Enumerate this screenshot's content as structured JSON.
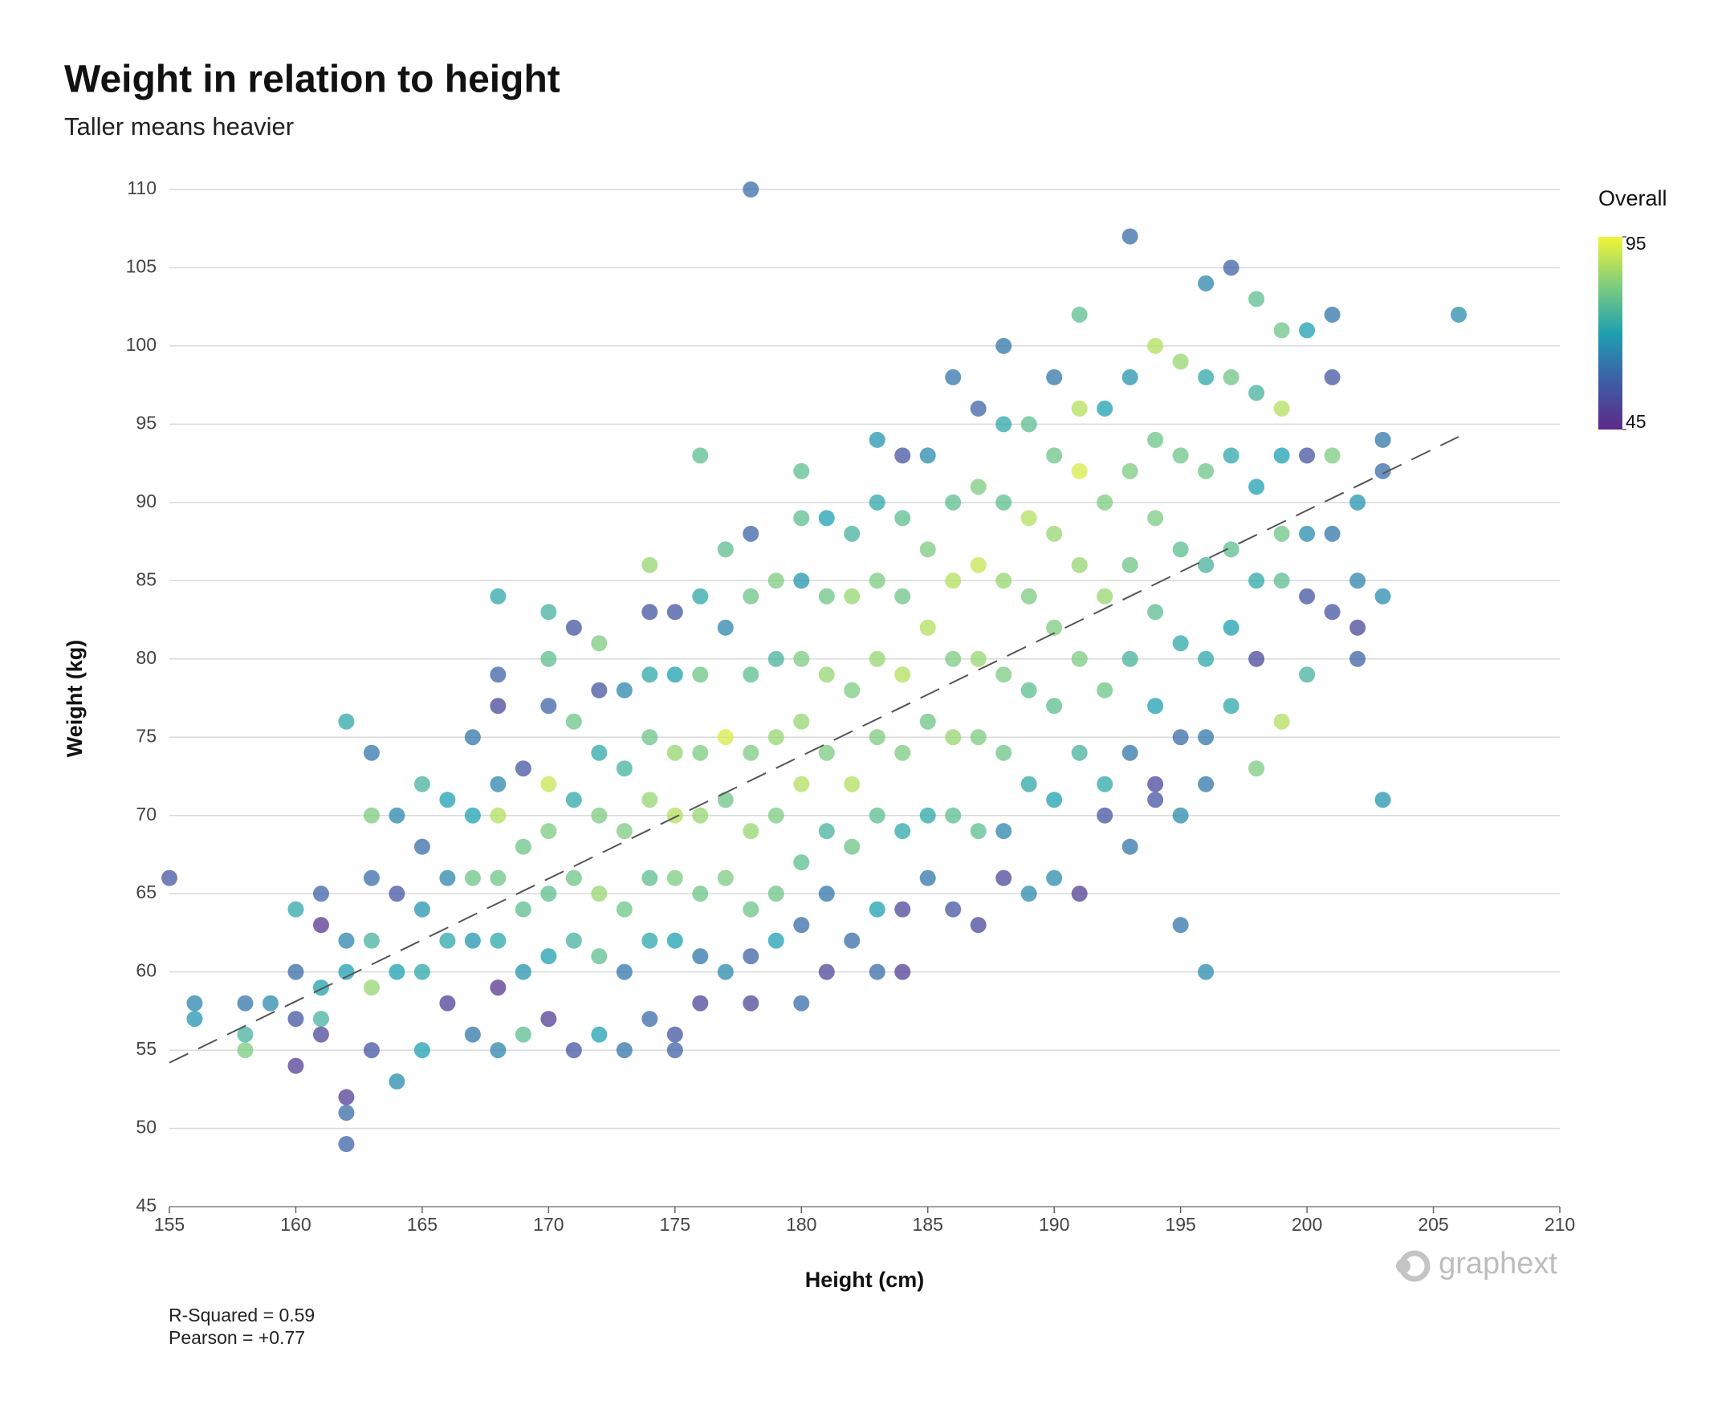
{
  "chart_data": {
    "type": "scatter",
    "title": "Weight in relation to height",
    "subtitle": "Taller means heavier",
    "x_label": "Height (cm)",
    "y_label": "Weight (kg)",
    "annotations": [
      "R-Squared = 0.59",
      "Pearson = +0.77"
    ],
    "logo": "graphext",
    "xlim": [
      155,
      210
    ],
    "xticks": [
      155,
      160,
      165,
      170,
      175,
      180,
      185,
      190,
      195,
      200,
      205,
      210
    ],
    "ylim": [
      45,
      110
    ],
    "yticks": [
      45,
      50,
      55,
      60,
      65,
      70,
      75,
      80,
      85,
      90,
      95,
      100,
      105,
      110
    ],
    "grid": true,
    "colorbar": {
      "title": "Overall",
      "lim": [
        45,
        95
      ],
      "ticks": [
        95,
        45
      ],
      "colorscale": [
        "#5c2a88",
        "#3e5ea6",
        "#1ea0b0",
        "#7fcd7d",
        "#f2f536"
      ]
    },
    "trendline": {
      "x": [
        155,
        206
      ],
      "y": [
        54.2,
        94.2
      ]
    },
    "x": [
      155,
      156,
      156,
      158,
      158,
      158,
      159,
      160,
      160,
      160,
      160,
      161,
      161,
      161,
      161,
      161,
      162,
      162,
      162,
      162,
      162,
      162,
      163,
      163,
      163,
      163,
      163,
      163,
      164,
      164,
      164,
      164,
      165,
      165,
      165,
      165,
      165,
      166,
      166,
      166,
      166,
      167,
      167,
      167,
      167,
      167,
      168,
      168,
      168,
      168,
      168,
      168,
      168,
      168,
      168,
      169,
      169,
      169,
      169,
      169,
      170,
      170,
      170,
      170,
      170,
      170,
      170,
      170,
      171,
      171,
      171,
      171,
      171,
      171,
      172,
      172,
      172,
      172,
      172,
      172,
      172,
      173,
      173,
      173,
      173,
      173,
      173,
      174,
      174,
      174,
      174,
      174,
      174,
      174,
      174,
      175,
      175,
      175,
      175,
      175,
      175,
      175,
      175,
      176,
      176,
      176,
      176,
      176,
      176,
      176,
      176,
      177,
      177,
      177,
      177,
      177,
      177,
      178,
      178,
      178,
      178,
      178,
      178,
      178,
      178,
      178,
      179,
      179,
      179,
      179,
      179,
      179,
      180,
      180,
      180,
      180,
      180,
      180,
      180,
      180,
      180,
      181,
      181,
      181,
      181,
      181,
      181,
      181,
      182,
      182,
      182,
      182,
      182,
      182,
      183,
      183,
      183,
      183,
      183,
      183,
      183,
      183,
      184,
      184,
      184,
      184,
      184,
      184,
      184,
      184,
      185,
      185,
      185,
      185,
      185,
      185,
      186,
      186,
      186,
      186,
      186,
      186,
      186,
      187,
      187,
      187,
      187,
      187,
      187,
      187,
      188,
      188,
      188,
      188,
      188,
      188,
      188,
      188,
      189,
      189,
      189,
      189,
      189,
      189,
      190,
      190,
      190,
      190,
      190,
      190,
      190,
      191,
      191,
      191,
      191,
      191,
      191,
      191,
      192,
      192,
      192,
      192,
      192,
      192,
      193,
      193,
      193,
      193,
      193,
      193,
      193,
      194,
      194,
      194,
      194,
      194,
      194,
      194,
      195,
      195,
      195,
      195,
      195,
      195,
      195,
      196,
      196,
      196,
      196,
      196,
      196,
      196,
      196,
      197,
      197,
      197,
      197,
      197,
      197,
      198,
      198,
      198,
      198,
      198,
      198,
      199,
      199,
      199,
      199,
      199,
      199,
      200,
      200,
      200,
      200,
      200,
      201,
      201,
      201,
      201,
      201,
      202,
      202,
      202,
      202,
      203,
      203,
      203,
      203,
      206
    ],
    "y": [
      66,
      58,
      57,
      58,
      56,
      55,
      58,
      60,
      57,
      54,
      64,
      65,
      63,
      59,
      57,
      56,
      76,
      52,
      51,
      49,
      62,
      60,
      74,
      70,
      66,
      62,
      59,
      55,
      70,
      65,
      60,
      53,
      72,
      68,
      64,
      60,
      55,
      71,
      66,
      62,
      58,
      75,
      70,
      66,
      62,
      56,
      84,
      79,
      77,
      72,
      70,
      66,
      62,
      59,
      55,
      73,
      68,
      64,
      60,
      56,
      83,
      80,
      77,
      72,
      69,
      65,
      61,
      57,
      82,
      76,
      71,
      66,
      62,
      55,
      81,
      78,
      74,
      70,
      65,
      61,
      56,
      78,
      73,
      69,
      64,
      60,
      55,
      86,
      83,
      79,
      75,
      71,
      66,
      62,
      57,
      83,
      79,
      74,
      70,
      66,
      62,
      56,
      55,
      93,
      84,
      79,
      74,
      70,
      65,
      61,
      58,
      87,
      82,
      75,
      71,
      66,
      60,
      110,
      88,
      84,
      79,
      74,
      69,
      64,
      61,
      58,
      85,
      80,
      75,
      70,
      65,
      62,
      92,
      89,
      85,
      80,
      76,
      72,
      67,
      63,
      58,
      89,
      84,
      79,
      74,
      69,
      65,
      60,
      88,
      84,
      78,
      72,
      68,
      62,
      94,
      90,
      85,
      80,
      75,
      70,
      64,
      60,
      93,
      89,
      84,
      79,
      74,
      69,
      64,
      60,
      93,
      87,
      82,
      76,
      70,
      66,
      98,
      90,
      85,
      80,
      75,
      70,
      64,
      96,
      91,
      86,
      80,
      75,
      69,
      63,
      100,
      95,
      90,
      85,
      79,
      74,
      69,
      66,
      95,
      89,
      84,
      78,
      72,
      65,
      98,
      93,
      88,
      82,
      77,
      71,
      66,
      102,
      96,
      92,
      86,
      80,
      74,
      65,
      96,
      90,
      84,
      78,
      72,
      70,
      107,
      98,
      92,
      86,
      80,
      74,
      68,
      100,
      94,
      89,
      83,
      77,
      72,
      71,
      99,
      93,
      87,
      81,
      75,
      70,
      63,
      104,
      98,
      92,
      86,
      80,
      75,
      72,
      60,
      105,
      98,
      93,
      87,
      82,
      77,
      103,
      97,
      91,
      85,
      80,
      73,
      101,
      96,
      93,
      88,
      85,
      76,
      101,
      93,
      88,
      84,
      79,
      102,
      98,
      93,
      88,
      83,
      90,
      85,
      82,
      80,
      94,
      92,
      84,
      71,
      102
    ],
    "overall": [
      55,
      65,
      68,
      62,
      75,
      82,
      66,
      60,
      55,
      50,
      72,
      58,
      48,
      70,
      75,
      52,
      72,
      50,
      60,
      58,
      65,
      70,
      62,
      82,
      60,
      75,
      85,
      55,
      65,
      55,
      70,
      66,
      75,
      60,
      68,
      72,
      70,
      70,
      65,
      72,
      50,
      62,
      70,
      80,
      68,
      62,
      72,
      58,
      52,
      65,
      88,
      80,
      72,
      48,
      65,
      55,
      80,
      78,
      68,
      78,
      75,
      78,
      58,
      90,
      82,
      78,
      70,
      50,
      55,
      80,
      72,
      80,
      75,
      55,
      82,
      55,
      72,
      82,
      85,
      78,
      70,
      65,
      75,
      82,
      80,
      62,
      62,
      85,
      55,
      72,
      80,
      85,
      78,
      72,
      60,
      55,
      70,
      85,
      88,
      82,
      70,
      55,
      58,
      78,
      72,
      80,
      82,
      85,
      80,
      62,
      52,
      78,
      65,
      92,
      80,
      82,
      66,
      60,
      58,
      80,
      78,
      82,
      85,
      80,
      58,
      52,
      82,
      75,
      85,
      82,
      80,
      70,
      78,
      78,
      68,
      82,
      85,
      88,
      78,
      60,
      60,
      70,
      80,
      85,
      82,
      75,
      62,
      52,
      75,
      85,
      82,
      88,
      80,
      60,
      68,
      72,
      82,
      85,
      82,
      78,
      70,
      60,
      55,
      78,
      80,
      88,
      82,
      72,
      52,
      50,
      66,
      82,
      88,
      80,
      72,
      62,
      62,
      78,
      88,
      82,
      85,
      78,
      55,
      58,
      82,
      90,
      85,
      82,
      78,
      52,
      62,
      72,
      78,
      85,
      82,
      80,
      65,
      52,
      78,
      88,
      82,
      78,
      72,
      66,
      62,
      80,
      85,
      82,
      78,
      70,
      66,
      78,
      88,
      92,
      85,
      82,
      75,
      50,
      70,
      82,
      85,
      80,
      72,
      55,
      60,
      68,
      82,
      80,
      75,
      62,
      62,
      88,
      80,
      82,
      78,
      70,
      52,
      55,
      85,
      80,
      78,
      72,
      60,
      66,
      62,
      65,
      72,
      80,
      75,
      72,
      62,
      62,
      66,
      58,
      80,
      72,
      78,
      70,
      72,
      78,
      75,
      70,
      72,
      52,
      82,
      80,
      88,
      70,
      80,
      78,
      88,
      70,
      55,
      66,
      55,
      75,
      62,
      55,
      82,
      62,
      55,
      68,
      65,
      52,
      58,
      62,
      60,
      66,
      68,
      66
    ]
  }
}
